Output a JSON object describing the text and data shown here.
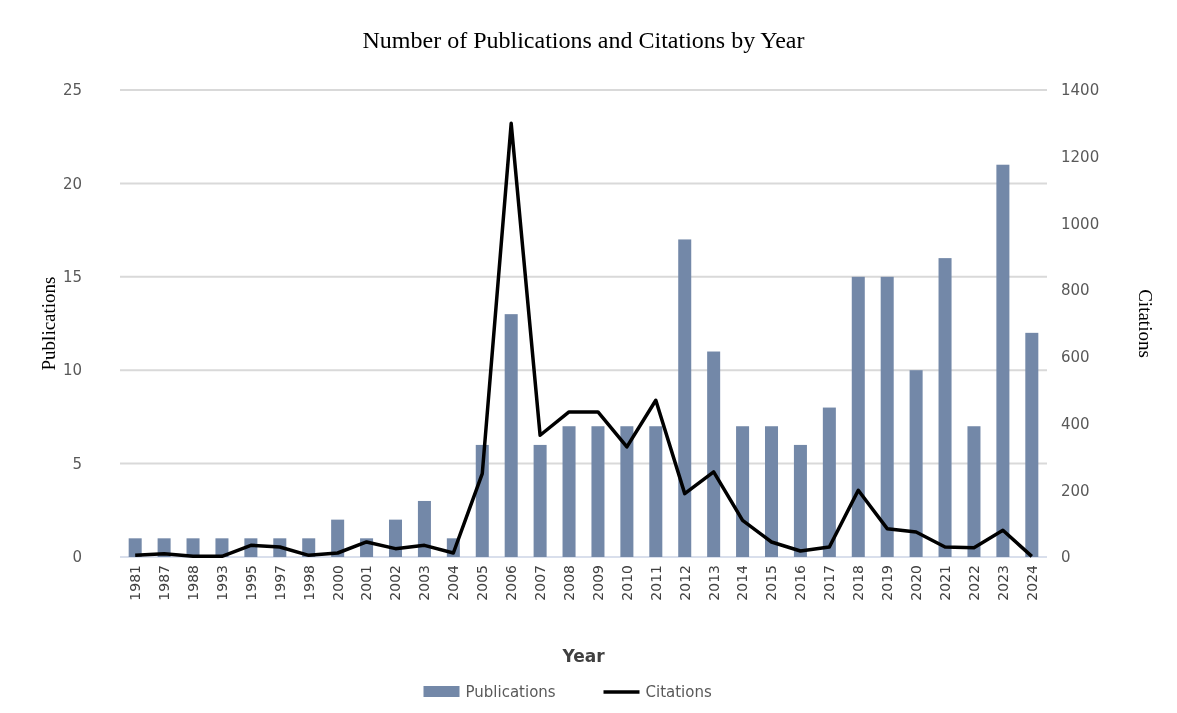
{
  "chart_data": {
    "type": "bar",
    "title": "Number of Publications and Citations by Year",
    "xlabel": "Year",
    "ylabel": "Publications",
    "y2label": "Citations",
    "categories": [
      "1981",
      "1987",
      "1988",
      "1993",
      "1995",
      "1997",
      "1998",
      "2000",
      "2001",
      "2002",
      "2003",
      "2004",
      "2005",
      "2006",
      "2007",
      "2008",
      "2009",
      "2010",
      "2011",
      "2012",
      "2013",
      "2014",
      "2015",
      "2016",
      "2017",
      "2018",
      "2019",
      "2020",
      "2021",
      "2022",
      "2023",
      "2024"
    ],
    "series": [
      {
        "name": "Publications",
        "color": "#7388a8",
        "values": [
          1,
          1,
          1,
          1,
          1,
          1,
          1,
          2,
          1,
          2,
          3,
          1,
          6,
          13,
          6,
          7,
          7,
          7,
          7,
          17,
          11,
          7,
          7,
          6,
          8,
          15,
          15,
          10,
          16,
          7,
          21,
          12
        ]
      },
      {
        "name": "Citations",
        "type": "line",
        "axis": "y2",
        "color": "#000000",
        "values": [
          5,
          10,
          2,
          2,
          35,
          30,
          5,
          12,
          45,
          25,
          35,
          12,
          250,
          1300,
          365,
          435,
          435,
          330,
          470,
          190,
          255,
          110,
          45,
          18,
          30,
          200,
          85,
          75,
          30,
          28,
          80,
          2
        ]
      }
    ],
    "ylim": [
      0,
      25
    ],
    "yticks": [
      0,
      5,
      10,
      15,
      20,
      25
    ],
    "y2lim": [
      0,
      1400
    ],
    "y2ticks": [
      0,
      200,
      400,
      600,
      800,
      1000,
      1200,
      1400
    ],
    "grid": "y",
    "legend": "bottom",
    "marker": "none",
    "line_style": "solid"
  }
}
